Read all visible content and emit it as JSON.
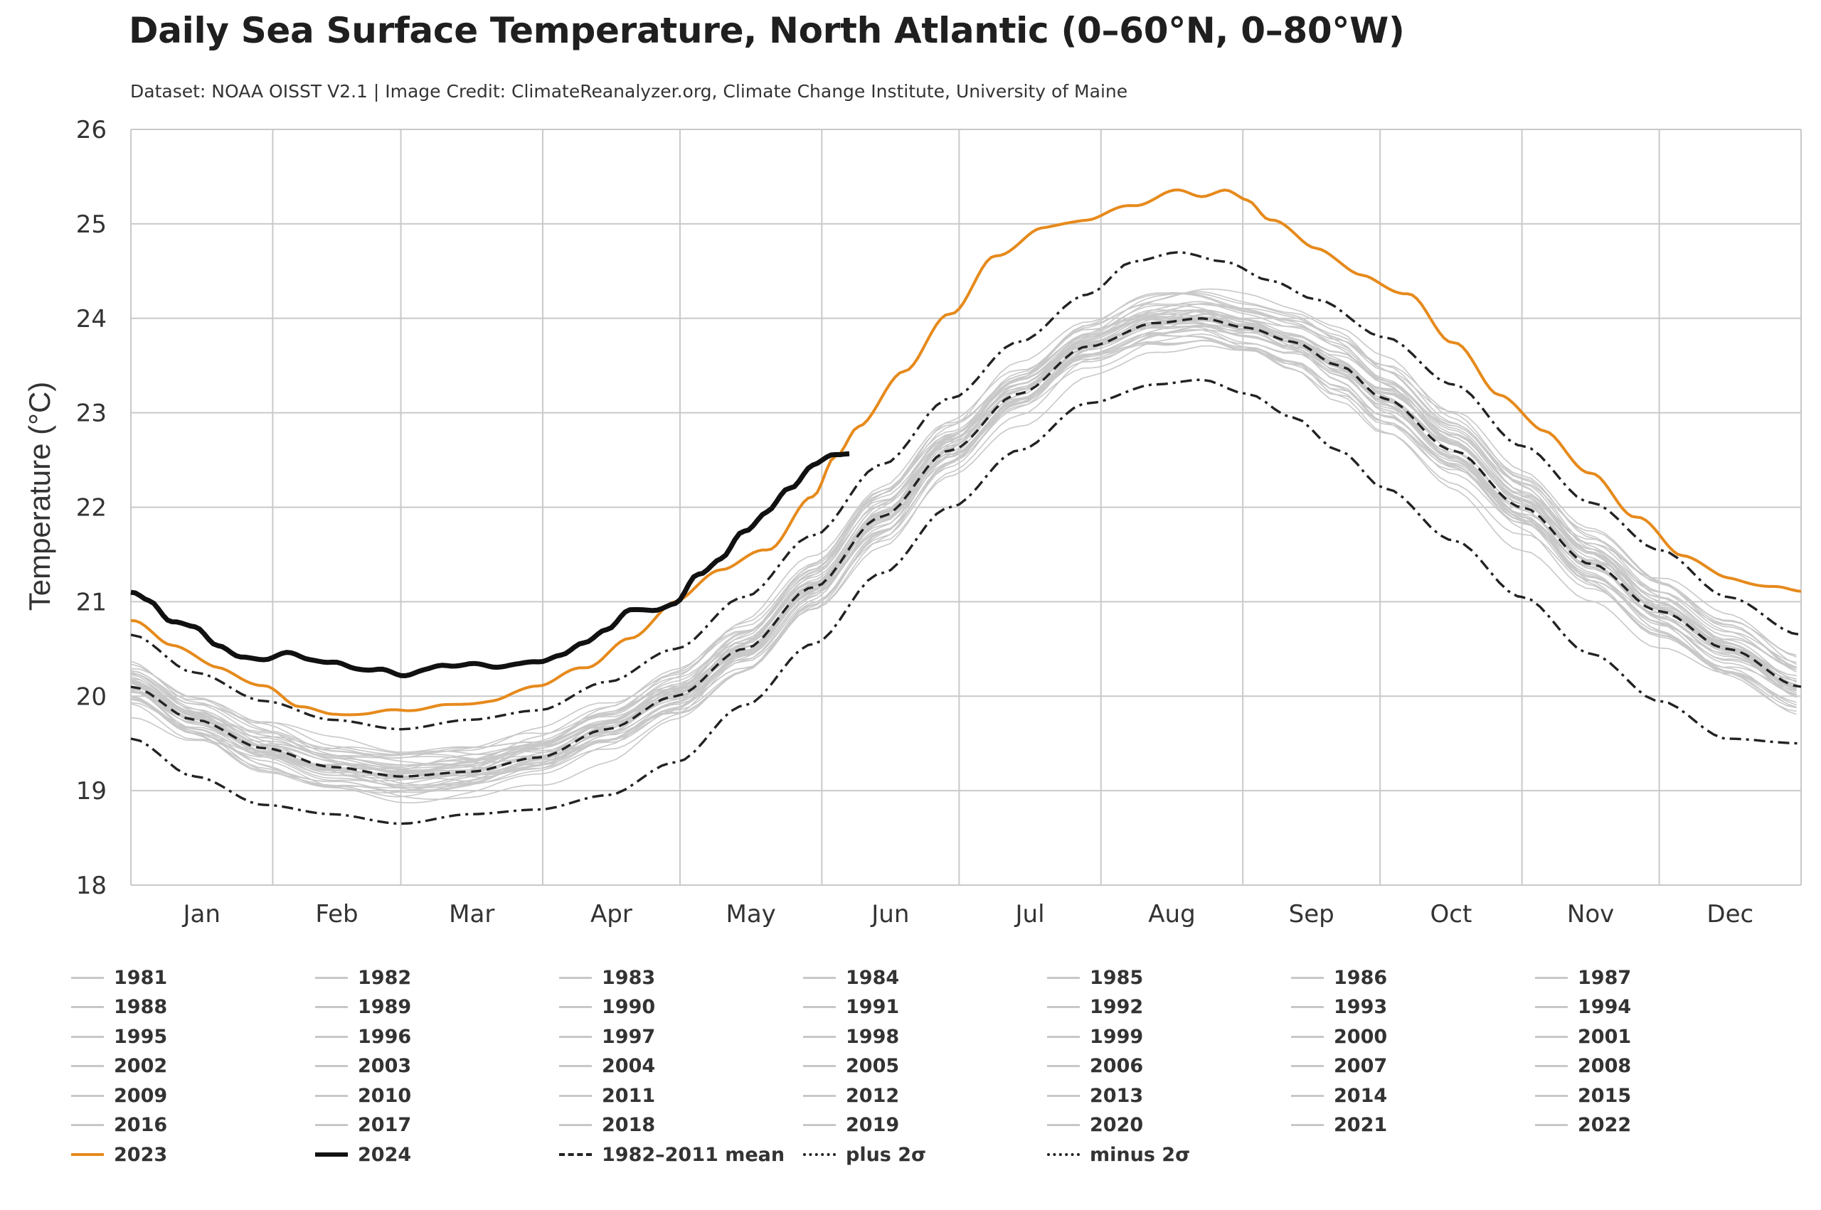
{
  "title": "Daily Sea Surface Temperature, North Atlantic (0–60°N, 0–80°W)",
  "subtitle": "Dataset: NOAA OISST V2.1 | Image Credit: ClimateReanalyzer.org, Climate Change Institute, University of Maine",
  "colors": {
    "background_years": "#c8c8c8",
    "y2023": "#e68a1c",
    "y2024": "#111111",
    "climatology": "#222222",
    "grid": "#c9c9c9"
  },
  "chart_data": {
    "type": "line",
    "ylabel": "Temperature (°C)",
    "xlabel": "",
    "ylim": [
      18,
      26
    ],
    "yticks": [
      18,
      19,
      20,
      21,
      22,
      23,
      24,
      25,
      26
    ],
    "xlim": [
      1,
      366
    ],
    "months": [
      {
        "label": "Jan",
        "start_day": 1
      },
      {
        "label": "Feb",
        "start_day": 32
      },
      {
        "label": "Mar",
        "start_day": 60
      },
      {
        "label": "Apr",
        "start_day": 91
      },
      {
        "label": "May",
        "start_day": 121
      },
      {
        "label": "Jun",
        "start_day": 152
      },
      {
        "label": "Jul",
        "start_day": 182
      },
      {
        "label": "Aug",
        "start_day": 213
      },
      {
        "label": "Sep",
        "start_day": 244
      },
      {
        "label": "Oct",
        "start_day": 274
      },
      {
        "label": "Nov",
        "start_day": 305
      },
      {
        "label": "Dec",
        "start_day": 335
      }
    ],
    "grid": true,
    "x_unit": "day of year",
    "background_years": [
      "1981",
      "1982",
      "1983",
      "1984",
      "1985",
      "1986",
      "1987",
      "1988",
      "1989",
      "1990",
      "1991",
      "1992",
      "1993",
      "1994",
      "1995",
      "1996",
      "1997",
      "1998",
      "1999",
      "2000",
      "2001",
      "2002",
      "2003",
      "2004",
      "2005",
      "2006",
      "2007",
      "2008",
      "2009",
      "2010",
      "2011",
      "2012",
      "2013",
      "2014",
      "2015",
      "2016",
      "2017",
      "2018",
      "2019",
      "2020",
      "2021",
      "2022"
    ],
    "series": [
      {
        "name": "2023",
        "style": "solid-orange",
        "x": [
          1,
          10,
          20,
          30,
          38,
          45,
          52,
          60,
          70,
          80,
          90,
          100,
          110,
          120,
          130,
          140,
          150,
          155,
          160,
          170,
          180,
          190,
          200,
          210,
          220,
          230,
          235,
          240,
          245,
          250,
          260,
          270,
          280,
          290,
          300,
          310,
          320,
          330,
          340,
          350,
          360,
          366
        ],
        "y": [
          20.8,
          20.55,
          20.3,
          20.1,
          19.9,
          19.8,
          19.82,
          19.85,
          19.9,
          19.95,
          20.12,
          20.3,
          20.6,
          21.0,
          21.35,
          21.55,
          22.1,
          22.55,
          22.85,
          23.45,
          24.05,
          24.65,
          24.95,
          25.05,
          25.2,
          25.35,
          25.3,
          25.35,
          25.25,
          25.05,
          24.75,
          24.45,
          24.25,
          23.75,
          23.2,
          22.8,
          22.35,
          21.9,
          21.5,
          21.25,
          21.15,
          21.12
        ]
      },
      {
        "name": "2024",
        "style": "solid-black-thick",
        "x": [
          1,
          5,
          10,
          15,
          20,
          25,
          30,
          35,
          40,
          45,
          50,
          55,
          60,
          65,
          70,
          75,
          80,
          85,
          90,
          95,
          100,
          105,
          110,
          115,
          120,
          125,
          130,
          135,
          140,
          145,
          150,
          155,
          158
        ],
        "y": [
          21.1,
          21.0,
          20.8,
          20.72,
          20.55,
          20.4,
          20.4,
          20.45,
          20.4,
          20.35,
          20.3,
          20.28,
          20.22,
          20.28,
          20.32,
          20.35,
          20.3,
          20.35,
          20.35,
          20.45,
          20.55,
          20.72,
          20.9,
          20.92,
          20.97,
          21.3,
          21.45,
          21.75,
          21.95,
          22.2,
          22.45,
          22.55,
          22.58
        ]
      },
      {
        "name": "1982–2011 mean",
        "style": "dashed",
        "x": [
          1,
          15,
          30,
          45,
          60,
          75,
          90,
          105,
          120,
          135,
          150,
          165,
          180,
          195,
          210,
          225,
          235,
          245,
          255,
          265,
          275,
          290,
          305,
          320,
          335,
          350,
          366
        ],
        "y": [
          20.1,
          19.75,
          19.45,
          19.25,
          19.15,
          19.2,
          19.35,
          19.65,
          20.0,
          20.5,
          21.15,
          21.9,
          22.6,
          23.2,
          23.7,
          23.95,
          24.0,
          23.9,
          23.75,
          23.5,
          23.15,
          22.6,
          22.0,
          21.4,
          20.9,
          20.5,
          20.1
        ]
      },
      {
        "name": "plus 2σ",
        "style": "dash-dot",
        "x": [
          1,
          15,
          30,
          45,
          60,
          75,
          90,
          105,
          120,
          135,
          150,
          165,
          180,
          195,
          210,
          220,
          230,
          240,
          250,
          260,
          275,
          290,
          305,
          320,
          335,
          350,
          366
        ],
        "y": [
          20.65,
          20.25,
          19.95,
          19.75,
          19.65,
          19.75,
          19.85,
          20.15,
          20.5,
          21.05,
          21.7,
          22.45,
          23.15,
          23.75,
          24.25,
          24.6,
          24.7,
          24.6,
          24.4,
          24.2,
          23.8,
          23.3,
          22.65,
          22.05,
          21.55,
          21.05,
          20.65
        ]
      },
      {
        "name": "minus 2σ",
        "style": "dash-dot",
        "x": [
          1,
          15,
          30,
          45,
          60,
          75,
          90,
          105,
          120,
          135,
          150,
          165,
          180,
          195,
          210,
          225,
          235,
          245,
          255,
          265,
          275,
          290,
          305,
          320,
          335,
          350,
          366
        ],
        "y": [
          19.55,
          19.15,
          18.85,
          18.75,
          18.65,
          18.75,
          18.8,
          18.95,
          19.3,
          19.9,
          20.55,
          21.3,
          22.0,
          22.6,
          23.1,
          23.3,
          23.35,
          23.2,
          22.95,
          22.6,
          22.2,
          21.65,
          21.05,
          20.45,
          19.95,
          19.55,
          19.5
        ]
      }
    ],
    "legend_position": "bottom",
    "legend": [
      "1981",
      "1982",
      "1983",
      "1984",
      "1985",
      "1986",
      "1987",
      "1988",
      "1989",
      "1990",
      "1991",
      "1992",
      "1993",
      "1994",
      "1995",
      "1996",
      "1997",
      "1998",
      "1999",
      "2000",
      "2001",
      "2002",
      "2003",
      "2004",
      "2005",
      "2006",
      "2007",
      "2008",
      "2009",
      "2010",
      "2011",
      "2012",
      "2013",
      "2014",
      "2015",
      "2016",
      "2017",
      "2018",
      "2019",
      "2020",
      "2021",
      "2022",
      "2023",
      "2024",
      "1982–2011 mean",
      "plus 2σ",
      "minus 2σ"
    ]
  }
}
